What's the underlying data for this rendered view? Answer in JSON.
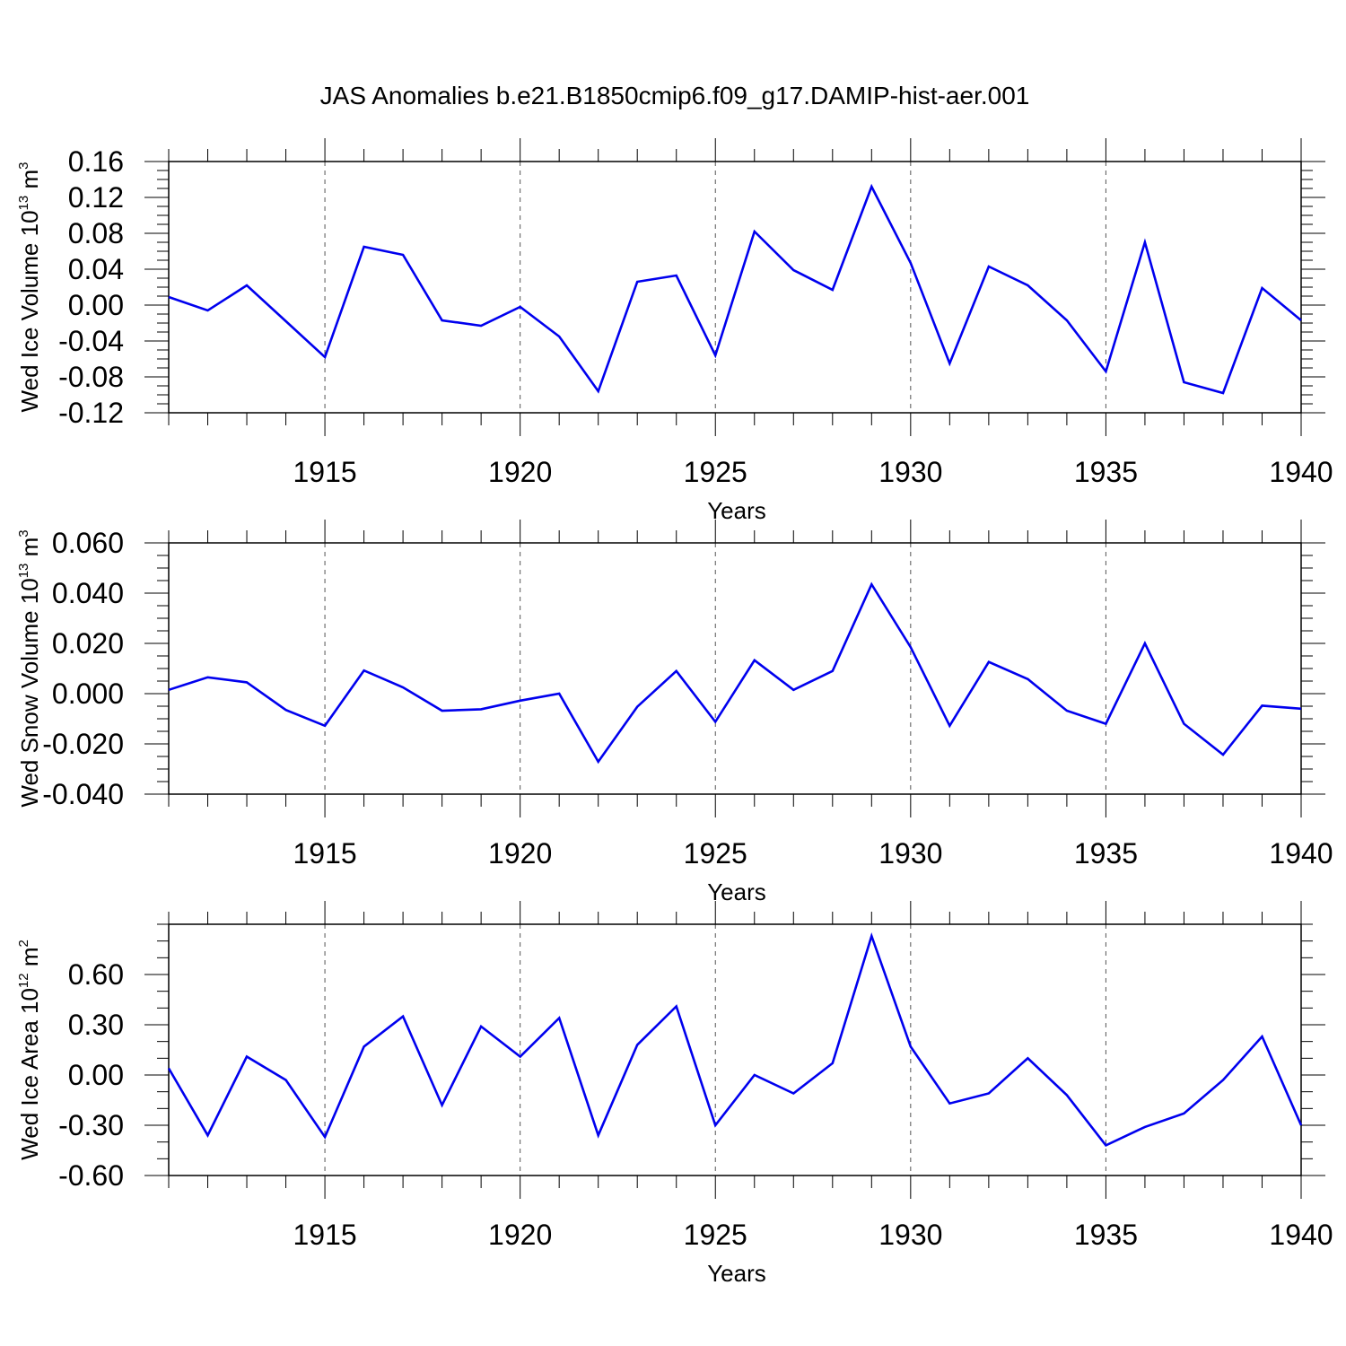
{
  "title": "JAS Anomalies b.e21.B1850cmip6.f09_g17.DAMIP-hist-aer.001",
  "colors": {
    "line": "#0000ee",
    "axis": "#000000",
    "grid": "#555555"
  },
  "chart_data": [
    {
      "type": "line",
      "ylabel": {
        "base": "Wed Ice Volume 10",
        "exp": "13",
        "unit": " m",
        "unit_exp": "3"
      },
      "xlabel": "Years",
      "xlim": [
        1911,
        1940
      ],
      "ylim": [
        -0.12,
        0.16
      ],
      "xticks": [
        1915,
        1920,
        1925,
        1930,
        1935,
        1940
      ],
      "yticks": [
        -0.12,
        -0.08,
        -0.04,
        0.0,
        0.04,
        0.08,
        0.12,
        0.16
      ],
      "ytick_labels": [
        "-0.12",
        "-0.08",
        "-0.04",
        "0.00",
        "0.04",
        "0.08",
        "0.12",
        "0.16"
      ],
      "ytick_minor": 0.01,
      "grid": "vertical dashed at labeled years",
      "x": [
        1911,
        1912,
        1913,
        1914,
        1915,
        1916,
        1917,
        1918,
        1919,
        1920,
        1921,
        1922,
        1923,
        1924,
        1925,
        1926,
        1927,
        1928,
        1929,
        1930,
        1931,
        1932,
        1933,
        1934,
        1935,
        1936,
        1937,
        1938,
        1939,
        1940
      ],
      "y": [
        0.009,
        -0.006,
        0.022,
        -0.018,
        -0.058,
        0.065,
        0.056,
        -0.017,
        -0.023,
        -0.002,
        -0.035,
        -0.096,
        0.026,
        0.033,
        -0.056,
        0.082,
        0.039,
        0.017,
        0.132,
        0.047,
        -0.065,
        0.043,
        0.022,
        -0.017,
        -0.074,
        0.07,
        -0.086,
        -0.098,
        0.019,
        -0.017
      ]
    },
    {
      "type": "line",
      "ylabel": {
        "base": "Wed Snow Volume 10",
        "exp": "13",
        "unit": " m",
        "unit_exp": "3"
      },
      "xlabel": "Years",
      "xlim": [
        1911,
        1940
      ],
      "ylim": [
        -0.04,
        0.06
      ],
      "xticks": [
        1915,
        1920,
        1925,
        1930,
        1935,
        1940
      ],
      "yticks": [
        -0.04,
        -0.02,
        0.0,
        0.02,
        0.04,
        0.06
      ],
      "ytick_labels": [
        "-0.040",
        "-0.020",
        "0.000",
        "0.020",
        "0.040",
        "0.060"
      ],
      "ytick_minor": 0.005,
      "grid": "vertical dashed at labeled years",
      "x": [
        1911,
        1912,
        1913,
        1914,
        1915,
        1916,
        1917,
        1918,
        1919,
        1920,
        1921,
        1922,
        1923,
        1924,
        1925,
        1926,
        1927,
        1928,
        1929,
        1930,
        1931,
        1932,
        1933,
        1934,
        1935,
        1936,
        1937,
        1938,
        1939,
        1940
      ],
      "y": [
        0.0015,
        0.0065,
        0.0045,
        -0.0065,
        -0.0128,
        0.0092,
        0.0025,
        -0.0068,
        -0.0062,
        -0.0028,
        0.0,
        -0.0271,
        -0.0052,
        0.009,
        -0.0112,
        0.0133,
        0.0015,
        0.009,
        0.0435,
        0.0185,
        -0.0128,
        0.0126,
        0.0058,
        -0.0068,
        -0.012,
        0.02,
        -0.012,
        -0.0243,
        -0.0048,
        -0.006
      ]
    },
    {
      "type": "line",
      "ylabel": {
        "base": "Wed Ice Area 10",
        "exp": "12",
        "unit": " m",
        "unit_exp": "2"
      },
      "xlabel": "Years",
      "xlim": [
        1911,
        1940
      ],
      "ylim": [
        -0.6,
        0.9
      ],
      "xticks": [
        1915,
        1920,
        1925,
        1930,
        1935,
        1940
      ],
      "yticks": [
        -0.6,
        -0.3,
        0.0,
        0.3,
        0.6
      ],
      "ytick_labels": [
        "-0.60",
        "-0.30",
        "0.00",
        "0.30",
        "0.60"
      ],
      "ytick_minor": 0.1,
      "grid": "vertical dashed at labeled years",
      "x": [
        1911,
        1912,
        1913,
        1914,
        1915,
        1916,
        1917,
        1918,
        1919,
        1920,
        1921,
        1922,
        1923,
        1924,
        1925,
        1926,
        1927,
        1928,
        1929,
        1930,
        1931,
        1932,
        1933,
        1934,
        1935,
        1936,
        1937,
        1938,
        1939,
        1940
      ],
      "y": [
        0.04,
        -0.36,
        0.11,
        -0.03,
        -0.37,
        0.17,
        0.35,
        -0.18,
        0.29,
        0.11,
        0.34,
        -0.36,
        0.18,
        0.41,
        -0.3,
        0.0,
        -0.11,
        0.07,
        0.83,
        0.17,
        -0.17,
        -0.11,
        0.1,
        -0.12,
        -0.42,
        -0.31,
        -0.23,
        -0.03,
        0.23,
        -0.3
      ]
    }
  ]
}
